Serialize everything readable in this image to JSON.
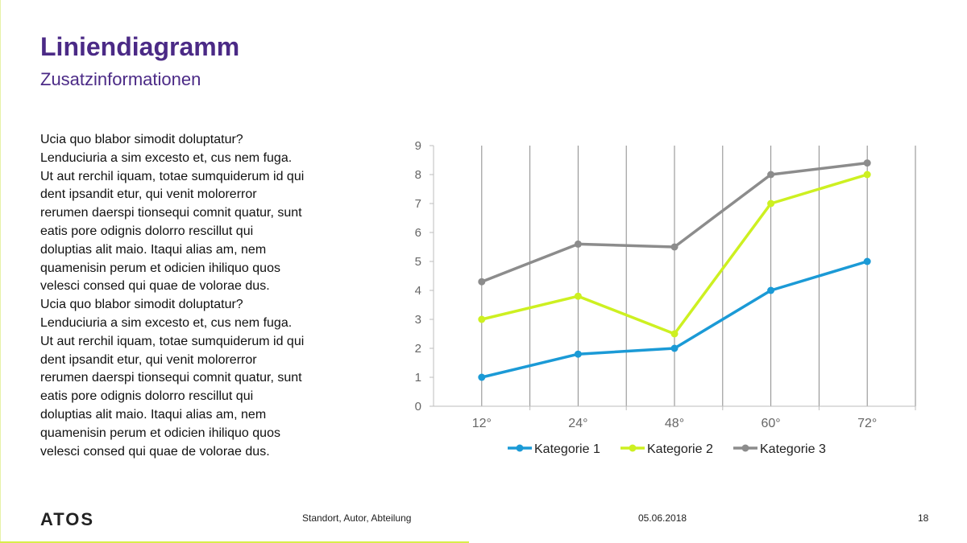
{
  "slide": {
    "title": "Liniendiagramm",
    "subtitle": "Zusatzinformationen",
    "body_lines": [
      "Ucia quo blabor simodit doluptatur?",
      "Lenduciuria a sim excesto et, cus nem fuga.",
      "Ut aut rerchil iquam, totae sumquiderum id qui",
      "dent ipsandit etur, qui venit molorerror",
      "rerumen daerspi tionsequi comnit quatur, sunt",
      "eatis pore odignis dolorro rescillut qui",
      "doluptias alit maio. Itaqui alias am, nem",
      "quamenisin perum et odicien ihiliquo quos",
      "velesci consed qui quae de volorae dus.",
      "Ucia quo blabor simodit doluptatur?",
      "Lenduciuria a sim excesto et, cus nem fuga.",
      "Ut aut rerchil iquam, totae sumquiderum id qui",
      "dent ipsandit etur, qui venit molorerror",
      "rerumen daerspi tionsequi comnit quatur, sunt",
      "eatis pore odignis dolorro rescillut qui",
      "doluptias alit maio. Itaqui alias am, nem",
      "quamenisin perum et odicien ihiliquo quos",
      "velesci consed qui quae de volorae dus."
    ]
  },
  "footer": {
    "logo": "ATOS",
    "meta": "Standort, Autor, Abteilung",
    "date": "05.06.2018",
    "page": "18"
  },
  "colors": {
    "title": "#4b2a86",
    "series_1": "#1b9ad6",
    "series_2": "#cdf021",
    "series_3": "#8c8c8c"
  },
  "chart_data": {
    "type": "line",
    "categories": [
      "12°",
      "24°",
      "48°",
      "60°",
      "72°"
    ],
    "series": [
      {
        "name": "Kategorie 1",
        "values": [
          1,
          1.8,
          2,
          4,
          5
        ]
      },
      {
        "name": "Kategorie 2",
        "values": [
          3,
          3.8,
          2.5,
          7,
          8
        ]
      },
      {
        "name": "Kategorie 3",
        "values": [
          4.3,
          5.6,
          5.5,
          8,
          8.4
        ]
      }
    ],
    "ylim": [
      0,
      9
    ],
    "yticks": [
      0,
      1,
      2,
      3,
      4,
      5,
      6,
      7,
      8,
      9
    ],
    "grid": "vertical",
    "legend": "bottom"
  }
}
